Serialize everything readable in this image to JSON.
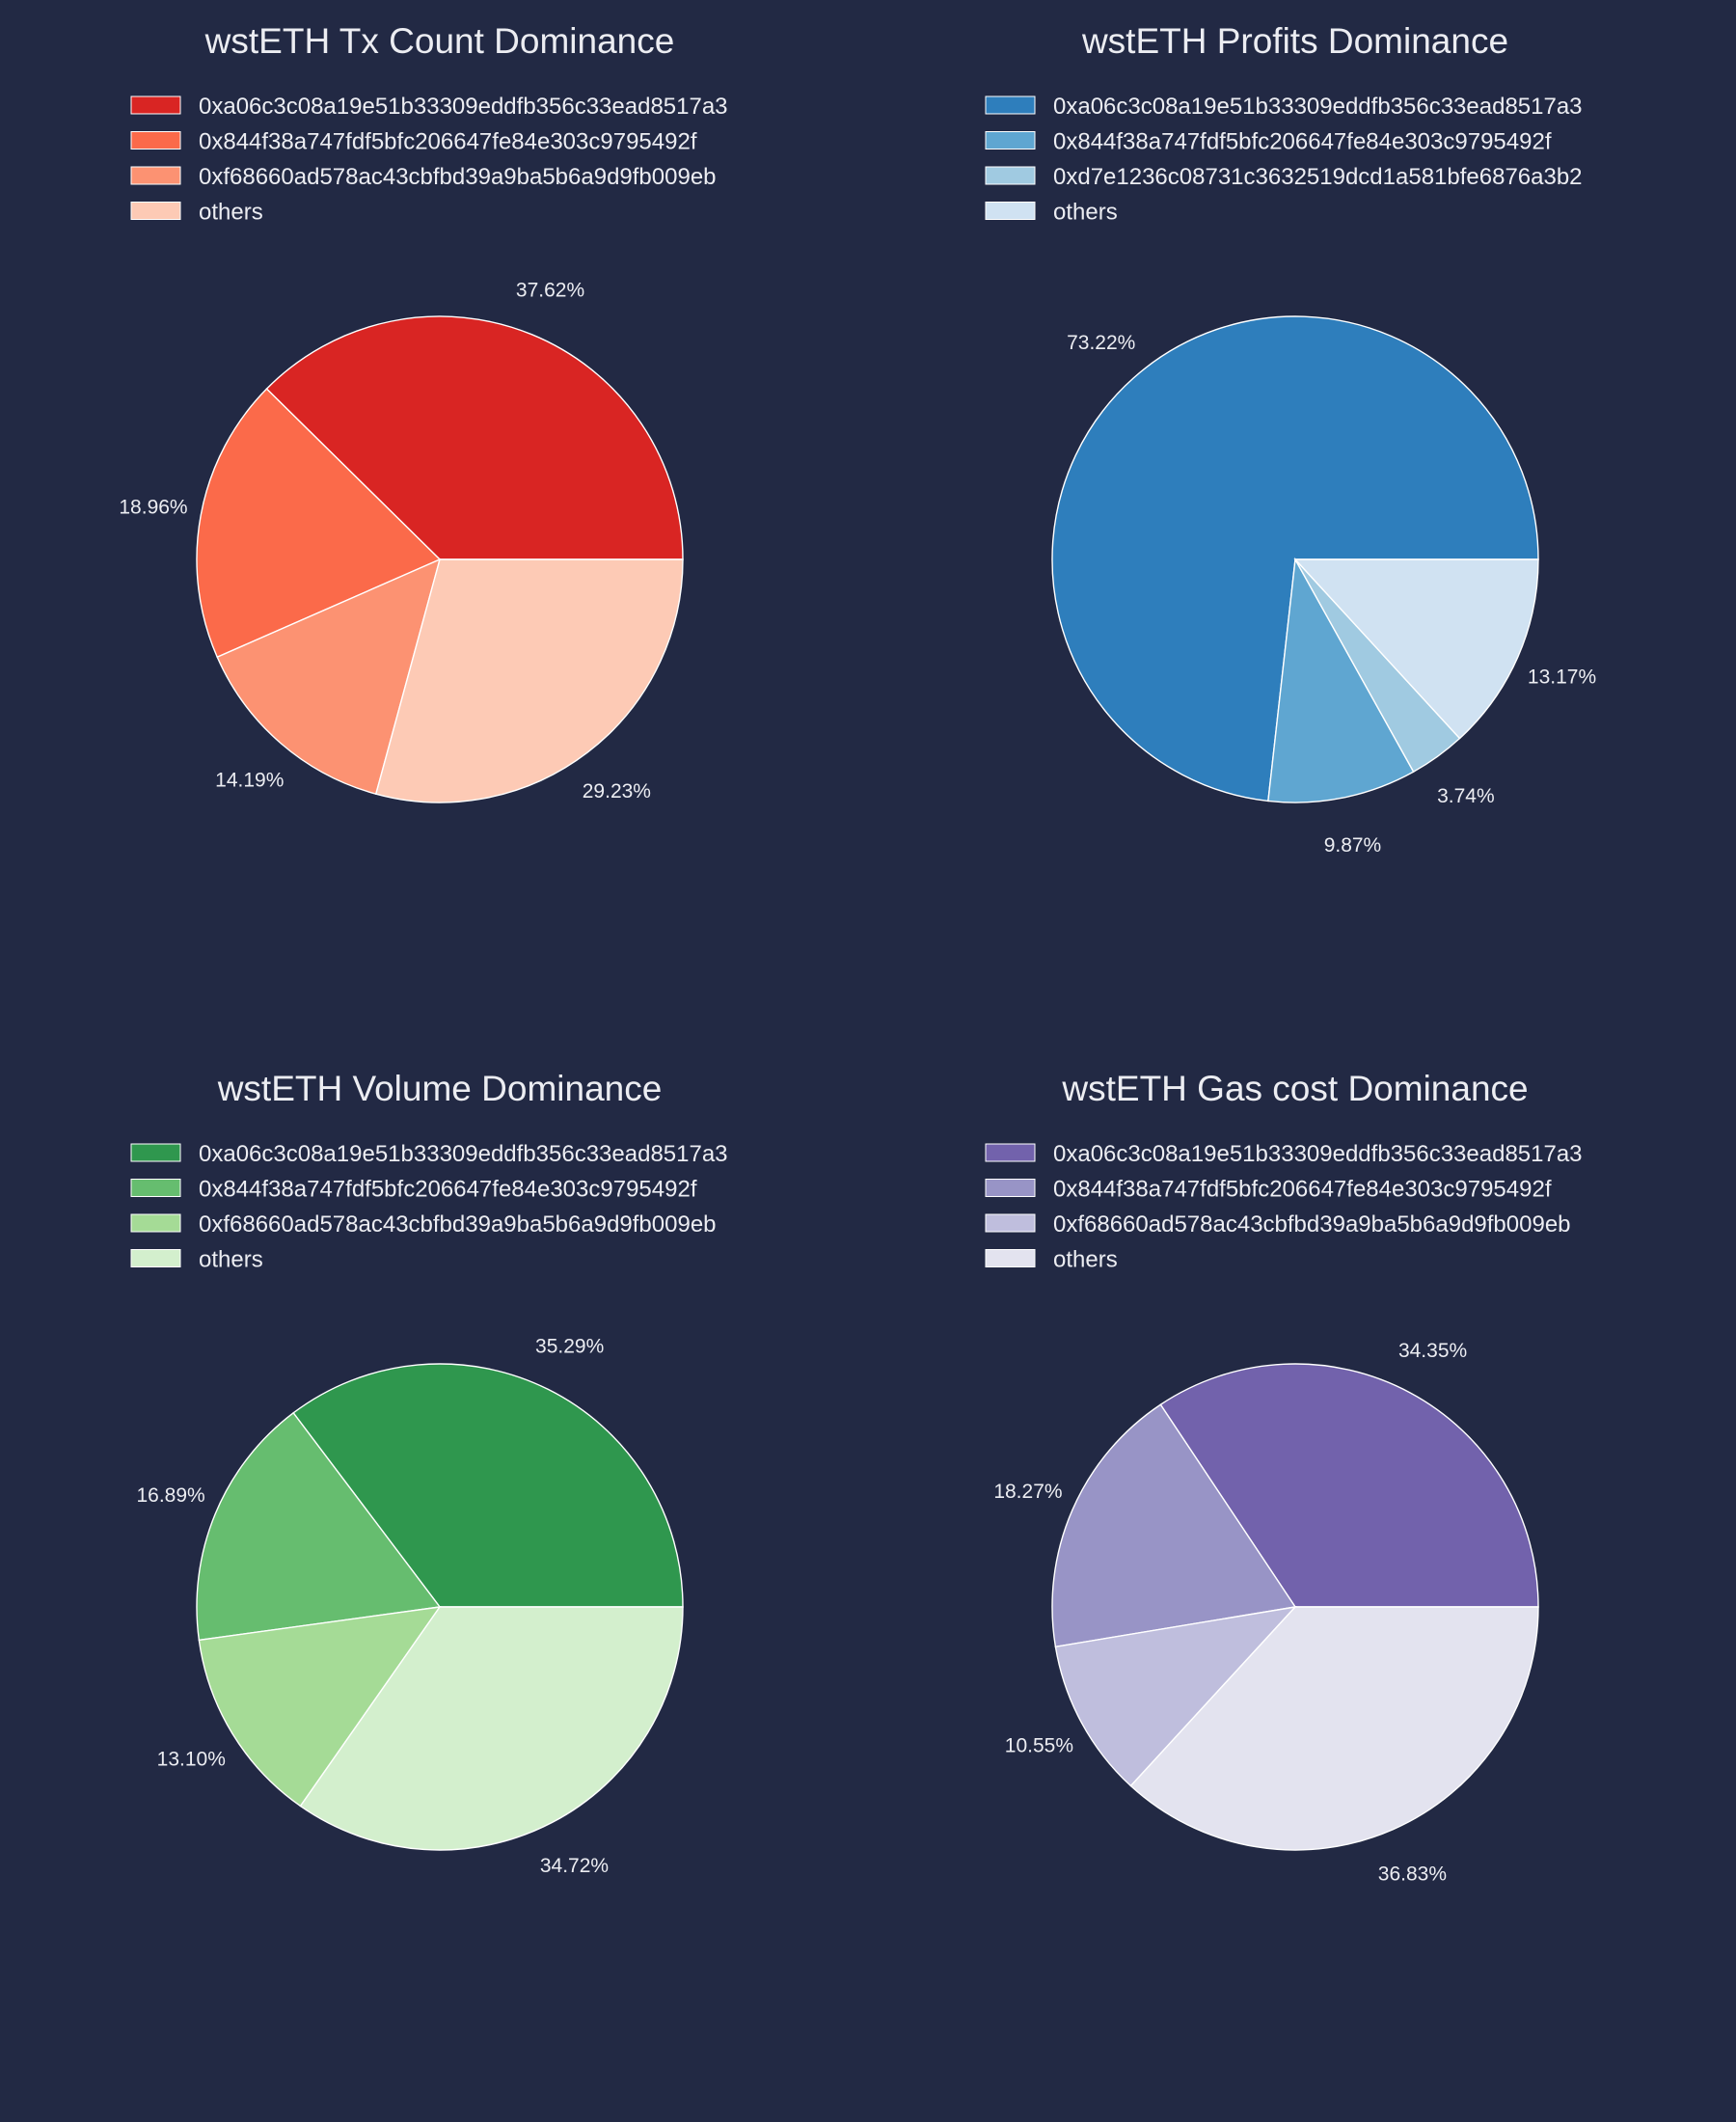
{
  "chart_data": [
    {
      "type": "pie",
      "title": "wstETH Tx Count Dominance",
      "labels": [
        "0xa06c3c08a19e51b33309eddfb356c33ead8517a3",
        "0x844f38a747fdf5bfc206647fe84e303c9795492f",
        "0xf68660ad578ac43cbfbd39a9ba5b6a9d9fb009eb",
        "others"
      ],
      "values": [
        37.62,
        18.96,
        14.19,
        29.23
      ],
      "value_labels": [
        "37.62%",
        "18.96%",
        "14.19%",
        "29.23%"
      ],
      "colors": [
        "#d92523",
        "#fb6a4a",
        "#fc9272",
        "#fdcab5"
      ],
      "legend_position": "top-left"
    },
    {
      "type": "pie",
      "title": "wstETH Profits Dominance",
      "labels": [
        "0xa06c3c08a19e51b33309eddfb356c33ead8517a3",
        "0x844f38a747fdf5bfc206647fe84e303c9795492f",
        "0xd7e1236c08731c3632519dcd1a581bfe6876a3b2",
        "others"
      ],
      "values": [
        73.22,
        9.87,
        3.74,
        13.17
      ],
      "value_labels": [
        "73.22%",
        "9.87%",
        "3.74%",
        "13.17%"
      ],
      "colors": [
        "#2e7ebc",
        "#5fa6d1",
        "#a0cae1",
        "#d0e2f2"
      ],
      "legend_position": "top-left"
    },
    {
      "type": "pie",
      "title": "wstETH Volume Dominance",
      "labels": [
        "0xa06c3c08a19e51b33309eddfb356c33ead8517a3",
        "0x844f38a747fdf5bfc206647fe84e303c9795492f",
        "0xf68660ad578ac43cbfbd39a9ba5b6a9d9fb009eb",
        "others"
      ],
      "values": [
        35.29,
        16.89,
        13.1,
        34.72
      ],
      "value_labels": [
        "35.29%",
        "16.89%",
        "13.10%",
        "34.72%"
      ],
      "colors": [
        "#2f974e",
        "#66bd6f",
        "#a5db96",
        "#d3efcd"
      ],
      "legend_position": "top-left"
    },
    {
      "type": "pie",
      "title": "wstETH Gas cost Dominance",
      "labels": [
        "0xa06c3c08a19e51b33309eddfb356c33ead8517a3",
        "0x844f38a747fdf5bfc206647fe84e303c9795492f",
        "0xf68660ad578ac43cbfbd39a9ba5b6a9d9fb009eb",
        "others"
      ],
      "values": [
        34.35,
        18.27,
        10.55,
        36.83
      ],
      "value_labels": [
        "34.35%",
        "18.27%",
        "10.55%",
        "36.83%"
      ],
      "colors": [
        "#7262ac",
        "#9894c6",
        "#bfbedd",
        "#e3e3ef"
      ],
      "legend_position": "top-left"
    }
  ]
}
